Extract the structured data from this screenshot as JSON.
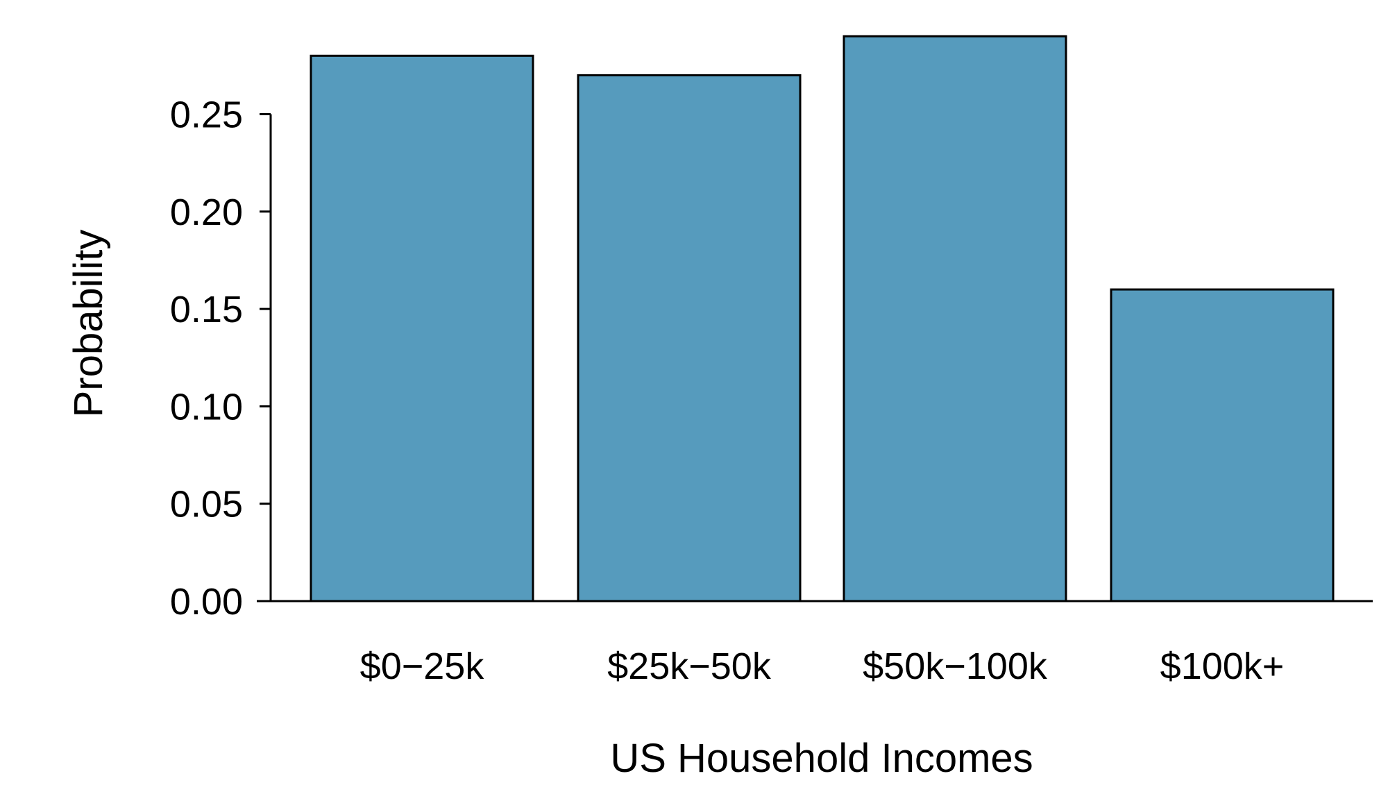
{
  "chart_data": {
    "type": "bar",
    "categories": [
      "$0−25k",
      "$25k−50k",
      "$50k−100k",
      "$100k+"
    ],
    "values": [
      0.28,
      0.27,
      0.29,
      0.16
    ],
    "xlabel": "US Household Incomes",
    "ylabel": "Probability",
    "ylim": [
      0,
      0.29
    ],
    "yticks": [
      0.0,
      0.05,
      0.1,
      0.15,
      0.2,
      0.25
    ],
    "ytick_labels": [
      "0.00",
      "0.05",
      "0.10",
      "0.15",
      "0.20",
      "0.25"
    ],
    "bar_color": "#569bbd",
    "grid": false,
    "legend": "none"
  }
}
